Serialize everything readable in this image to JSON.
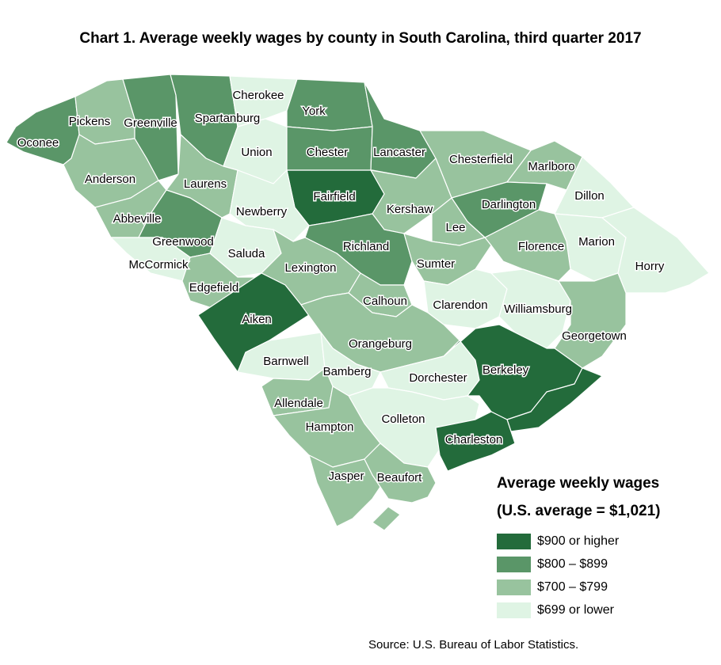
{
  "title": "Chart 1. Average weekly wages by county in South Carolina, third quarter 2017",
  "source": "Source: U.S. Bureau of Labor Statistics.",
  "legend": {
    "title": "Average weekly wages",
    "subtitle": "(U.S. average = $1,021)",
    "items": [
      {
        "label": "$900 or higher",
        "color": "#236b3b"
      },
      {
        "label": "$800 – $899",
        "color": "#5a9668"
      },
      {
        "label": "$700 – $799",
        "color": "#98c39e"
      },
      {
        "label": "$699 or lower",
        "color": "#dff4e4"
      }
    ]
  },
  "counties": [
    {
      "name": "Oconee",
      "category": 1
    },
    {
      "name": "Pickens",
      "category": 2
    },
    {
      "name": "Greenville",
      "category": 1
    },
    {
      "name": "Spartanburg",
      "category": 1
    },
    {
      "name": "Cherokee",
      "category": 3
    },
    {
      "name": "York",
      "category": 1
    },
    {
      "name": "Union",
      "category": 3
    },
    {
      "name": "Chester",
      "category": 1
    },
    {
      "name": "Lancaster",
      "category": 1
    },
    {
      "name": "Chesterfield",
      "category": 2
    },
    {
      "name": "Marlboro",
      "category": 2
    },
    {
      "name": "Dillon",
      "category": 3
    },
    {
      "name": "Anderson",
      "category": 2
    },
    {
      "name": "Laurens",
      "category": 2
    },
    {
      "name": "Fairfield",
      "category": 0
    },
    {
      "name": "Kershaw",
      "category": 2
    },
    {
      "name": "Darlington",
      "category": 1
    },
    {
      "name": "Abbeville",
      "category": 2
    },
    {
      "name": "Newberry",
      "category": 3
    },
    {
      "name": "Greenwood",
      "category": 1
    },
    {
      "name": "Lee",
      "category": 2
    },
    {
      "name": "Marion",
      "category": 3
    },
    {
      "name": "Horry",
      "category": 3
    },
    {
      "name": "Saluda",
      "category": 3
    },
    {
      "name": "Richland",
      "category": 1
    },
    {
      "name": "Florence",
      "category": 2
    },
    {
      "name": "McCormick",
      "category": 3
    },
    {
      "name": "Lexington",
      "category": 2
    },
    {
      "name": "Sumter",
      "category": 2
    },
    {
      "name": "Edgefield",
      "category": 2
    },
    {
      "name": "Calhoun",
      "category": 2
    },
    {
      "name": "Clarendon",
      "category": 3
    },
    {
      "name": "Williamsburg",
      "category": 3
    },
    {
      "name": "Aiken",
      "category": 0
    },
    {
      "name": "Orangeburg",
      "category": 2
    },
    {
      "name": "Georgetown",
      "category": 2
    },
    {
      "name": "Barnwell",
      "category": 3
    },
    {
      "name": "Bamberg",
      "category": 3
    },
    {
      "name": "Dorchester",
      "category": 3
    },
    {
      "name": "Berkeley",
      "category": 0
    },
    {
      "name": "Allendale",
      "category": 2
    },
    {
      "name": "Colleton",
      "category": 3
    },
    {
      "name": "Hampton",
      "category": 2
    },
    {
      "name": "Charleston",
      "category": 0
    },
    {
      "name": "Jasper",
      "category": 2
    },
    {
      "name": "Beaufort",
      "category": 2
    }
  ]
}
